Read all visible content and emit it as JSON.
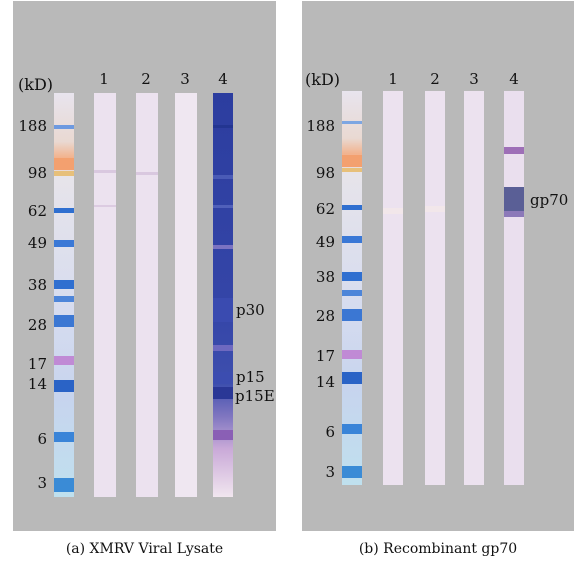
{
  "panels": [
    {
      "id": "a",
      "unit_label": "(kD)",
      "lane_numbers": [
        "1",
        "2",
        "3",
        "4"
      ],
      "mw_markers": [
        "188",
        "98",
        "62",
        "49",
        "38",
        "28",
        "17",
        "14",
        "6",
        "3"
      ],
      "band_labels": [
        "p30",
        "p15",
        "p15E"
      ],
      "caption": "(a)  XMRV Viral Lysate"
    },
    {
      "id": "b",
      "unit_label": "(kD)",
      "lane_numbers": [
        "1",
        "2",
        "3",
        "4"
      ],
      "mw_markers": [
        "188",
        "98",
        "62",
        "49",
        "38",
        "28",
        "17",
        "14",
        "6",
        "3"
      ],
      "band_labels": [
        "gp70"
      ],
      "caption": "(b)  Recombinant gp70"
    }
  ],
  "colors": {
    "panel_background": "#b9b9b9",
    "strip_background": "#ece3ef",
    "ladder_blue": "#2f6fd0",
    "lysate_lane_blue": "#2c3fa0",
    "gp70_band": "#5a5f96"
  }
}
